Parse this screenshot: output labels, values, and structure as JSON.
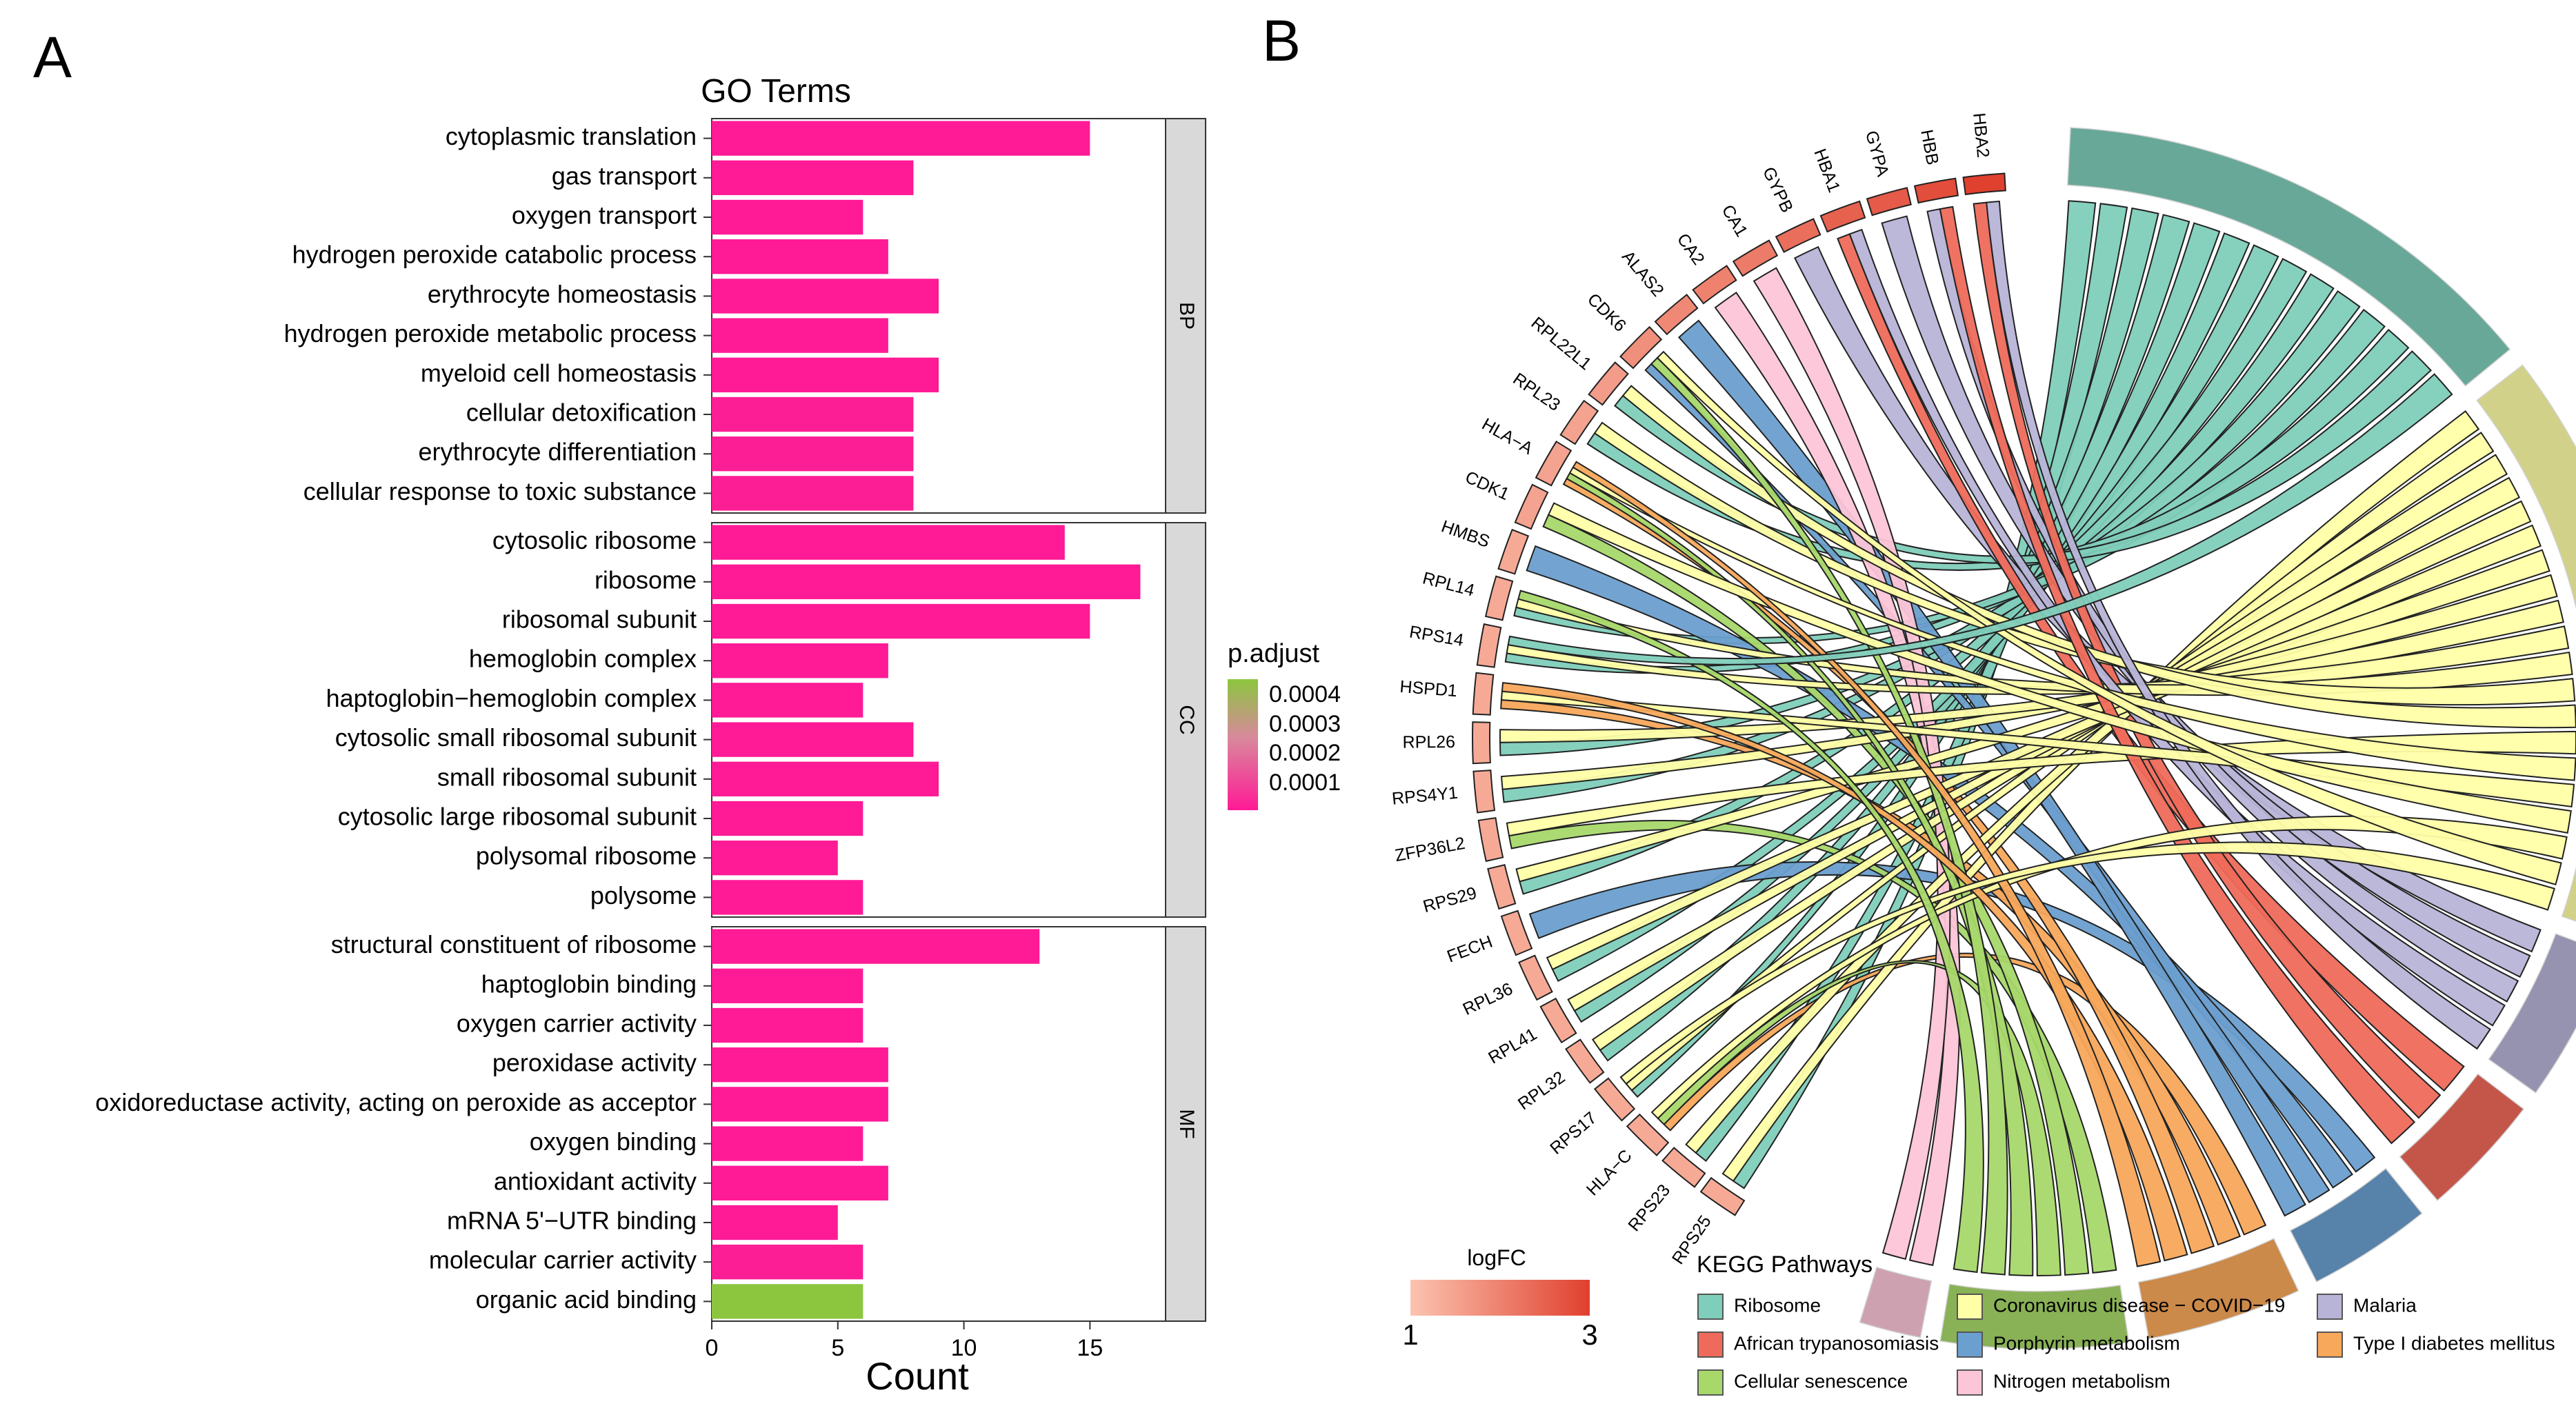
{
  "panels": {
    "a_label": "A",
    "b_label": "B"
  },
  "chart_data": [
    {
      "type": "bar",
      "orientation": "horizontal",
      "title": "GO Terms",
      "xlabel": "Count",
      "ylabel": "",
      "xlim": [
        0,
        18
      ],
      "xticks": [
        0,
        5,
        10,
        15
      ],
      "legend": {
        "title": "p.adjust",
        "ticks": [
          "0.0004",
          "0.0003",
          "0.0002",
          "0.0001"
        ],
        "low_color": "#ff1a96",
        "high_color": "#8cc63f",
        "placement": "right"
      },
      "facets": [
        {
          "name": "BP",
          "categories": [
            {
              "label": "cytoplasmic translation",
              "value": 15,
              "p_adjust": 2e-05
            },
            {
              "label": "gas transport",
              "value": 8,
              "p_adjust": 2e-05
            },
            {
              "label": "oxygen transport",
              "value": 6,
              "p_adjust": 2e-05
            },
            {
              "label": "hydrogen peroxide catabolic process",
              "value": 7,
              "p_adjust": 2e-05
            },
            {
              "label": "erythrocyte homeostasis",
              "value": 9,
              "p_adjust": 2e-05
            },
            {
              "label": "hydrogen peroxide metabolic process",
              "value": 7,
              "p_adjust": 2e-05
            },
            {
              "label": "myeloid cell homeostasis",
              "value": 9,
              "p_adjust": 2e-05
            },
            {
              "label": "cellular detoxification",
              "value": 8,
              "p_adjust": 3e-05
            },
            {
              "label": "erythrocyte differentiation",
              "value": 8,
              "p_adjust": 3e-05
            },
            {
              "label": "cellular response to toxic substance",
              "value": 8,
              "p_adjust": 3e-05
            }
          ]
        },
        {
          "name": "CC",
          "categories": [
            {
              "label": "cytosolic ribosome",
              "value": 14,
              "p_adjust": 2e-05
            },
            {
              "label": "ribosome",
              "value": 17,
              "p_adjust": 2e-05
            },
            {
              "label": "ribosomal subunit",
              "value": 15,
              "p_adjust": 2e-05
            },
            {
              "label": "hemoglobin complex",
              "value": 7,
              "p_adjust": 2e-05
            },
            {
              "label": "haptoglobin−hemoglobin complex",
              "value": 6,
              "p_adjust": 2e-05
            },
            {
              "label": "cytosolic small ribosomal subunit",
              "value": 8,
              "p_adjust": 2e-05
            },
            {
              "label": "small ribosomal subunit",
              "value": 9,
              "p_adjust": 2e-05
            },
            {
              "label": "cytosolic large ribosomal subunit",
              "value": 6,
              "p_adjust": 2e-05
            },
            {
              "label": "polysomal ribosome",
              "value": 5,
              "p_adjust": 2e-05
            },
            {
              "label": "polysome",
              "value": 6,
              "p_adjust": 2e-05
            }
          ]
        },
        {
          "name": "MF",
          "categories": [
            {
              "label": "structural constituent of ribosome",
              "value": 13,
              "p_adjust": 2e-05
            },
            {
              "label": "haptoglobin binding",
              "value": 6,
              "p_adjust": 2e-05
            },
            {
              "label": "oxygen carrier activity",
              "value": 6,
              "p_adjust": 2e-05
            },
            {
              "label": "peroxidase activity",
              "value": 7,
              "p_adjust": 2e-05
            },
            {
              "label": "oxidoreductase activity, acting on peroxide as acceptor",
              "value": 7,
              "p_adjust": 2e-05
            },
            {
              "label": "oxygen binding",
              "value": 6,
              "p_adjust": 2e-05
            },
            {
              "label": "antioxidant activity",
              "value": 7,
              "p_adjust": 2e-05
            },
            {
              "label": "mRNA 5'−UTR binding",
              "value": 5,
              "p_adjust": 2e-05
            },
            {
              "label": "molecular carrier activity",
              "value": 6,
              "p_adjust": 3e-05
            },
            {
              "label": "organic acid binding",
              "value": 6,
              "p_adjust": 0.00045
            }
          ]
        }
      ]
    },
    {
      "type": "chord",
      "title": "",
      "genes": [
        "HBA2",
        "HBB",
        "GYPA",
        "HBA1",
        "GYPB",
        "CA1",
        "CA2",
        "ALAS2",
        "CDK6",
        "RPL22L1",
        "RPL23",
        "HLA−A",
        "CDK1",
        "HMBS",
        "RPL14",
        "RPS14",
        "HSPD1",
        "RPL26",
        "RPS4Y1",
        "ZFP36L2",
        "RPS29",
        "FECH",
        "RPL36",
        "RPL41",
        "RPL32",
        "RPS17",
        "HLA−C",
        "RPS23",
        "RPS25"
      ],
      "logfc": [
        3.0,
        2.8,
        2.6,
        2.5,
        2.3,
        2.1,
        2.0,
        1.9,
        1.8,
        1.6,
        1.5,
        1.5,
        1.5,
        1.4,
        1.4,
        1.4,
        1.4,
        1.4,
        1.4,
        1.4,
        1.4,
        1.4,
        1.4,
        1.4,
        1.4,
        1.4,
        1.4,
        1.4,
        1.4
      ],
      "pathways": [
        {
          "name": "Ribosome",
          "color": "#7fcdbb"
        },
        {
          "name": "Coronavirus disease − COVID−19",
          "color": "#ffffa8"
        },
        {
          "name": "Malaria",
          "color": "#b8b4d8"
        },
        {
          "name": "African trypanosomiasis",
          "color": "#ef6a5a"
        },
        {
          "name": "Porphyrin metabolism",
          "color": "#6b9fcf"
        },
        {
          "name": "Type I diabetes mellitus",
          "color": "#f8a85b"
        },
        {
          "name": "Cellular senescence",
          "color": "#a8d86a"
        },
        {
          "name": "Nitrogen metabolism",
          "color": "#fcc5d8"
        }
      ],
      "pathway_sizes": [
        16,
        19,
        5,
        4,
        4,
        5,
        6,
        2
      ],
      "links": [
        [
          "RPS25",
          "Ribosome"
        ],
        [
          "RPS23",
          "Ribosome"
        ],
        [
          "HLA−C",
          "Type I diabetes mellitus"
        ],
        [
          "RPS17",
          "Ribosome"
        ],
        [
          "RPL32",
          "Ribosome"
        ],
        [
          "RPL41",
          "Ribosome"
        ],
        [
          "RPL36",
          "Ribosome"
        ],
        [
          "FECH",
          "Porphyrin metabolism"
        ],
        [
          "RPS29",
          "Ribosome"
        ],
        [
          "ZFP36L2",
          "Cellular senescence"
        ],
        [
          "RPS4Y1",
          "Ribosome"
        ],
        [
          "RPL26",
          "Ribosome"
        ],
        [
          "HSPD1",
          "Type I diabetes mellitus"
        ],
        [
          "RPS14",
          "Ribosome"
        ],
        [
          "RPL14",
          "Ribosome"
        ],
        [
          "HMBS",
          "Porphyrin metabolism"
        ],
        [
          "CDK1",
          "Cellular senescence"
        ],
        [
          "HLA−A",
          "Type I diabetes mellitus"
        ],
        [
          "RPL23",
          "Ribosome"
        ],
        [
          "RPL22L1",
          "Ribosome"
        ],
        [
          "CDK6",
          "Porphyrin metabolism"
        ],
        [
          "ALAS2",
          "Porphyrin metabolism"
        ],
        [
          "CA2",
          "Nitrogen metabolism"
        ],
        [
          "CA1",
          "Nitrogen metabolism"
        ],
        [
          "GYPB",
          "Malaria"
        ],
        [
          "HBA1",
          "African trypanosomiasis"
        ],
        [
          "GYPA",
          "Malaria"
        ],
        [
          "HBB",
          "Malaria"
        ],
        [
          "HBA2",
          "African trypanosomiasis"
        ],
        [
          "RPS25",
          "Coronavirus disease − COVID−19"
        ],
        [
          "RPS23",
          "Coronavirus disease − COVID−19"
        ],
        [
          "RPS17",
          "Coronavirus disease − COVID−19"
        ],
        [
          "RPL32",
          "Coronavirus disease − COVID−19"
        ],
        [
          "RPL41",
          "Coronavirus disease − COVID−19"
        ],
        [
          "RPL36",
          "Coronavirus disease − COVID−19"
        ],
        [
          "RPS29",
          "Coronavirus disease − COVID−19"
        ],
        [
          "RPS4Y1",
          "Coronavirus disease − COVID−19"
        ],
        [
          "RPL26",
          "Coronavirus disease − COVID−19"
        ],
        [
          "RPS14",
          "Coronavirus disease − COVID−19"
        ],
        [
          "RPL14",
          "Coronavirus disease − COVID−19"
        ],
        [
          "RPL23",
          "Coronavirus disease − COVID−19"
        ],
        [
          "RPL22L1",
          "Coronavirus disease − COVID−19"
        ],
        [
          "HLA−C",
          "Cellular senescence"
        ],
        [
          "HLA−A",
          "Cellular senescence"
        ],
        [
          "CDK6",
          "Cellular senescence"
        ],
        [
          "ZFP36L2",
          "Coronavirus disease − COVID−19"
        ],
        [
          "HBA1",
          "Malaria"
        ],
        [
          "HBA2",
          "Malaria"
        ],
        [
          "HBB",
          "African trypanosomiasis"
        ],
        [
          "HLA−A",
          "Coronavirus disease − COVID−19"
        ],
        [
          "HSPD1",
          "Coronavirus disease − COVID−19"
        ],
        [
          "CDK1",
          "Coronavirus disease − COVID−19"
        ],
        [
          "HLA−C",
          "Coronavirus disease − COVID−19"
        ],
        [
          "HSPD1",
          "Type I diabetes mellitus"
        ],
        [
          "HLA−A",
          "Type I diabetes mellitus"
        ],
        [
          "CDK6",
          "Coronavirus disease − COVID−19"
        ],
        [
          "RPS17",
          "Coronavirus disease − COVID−19"
        ],
        [
          "RPL14",
          "Cellular senescence"
        ],
        [
          "RPS14",
          "Ribosome"
        ]
      ],
      "logfc_legend": {
        "title": "logFC",
        "min_label": "1",
        "max_label": "3",
        "low_color": "#fbc4b0",
        "high_color": "#e0402e"
      },
      "pathway_legend": {
        "title": "KEGG Pathways"
      }
    }
  ]
}
